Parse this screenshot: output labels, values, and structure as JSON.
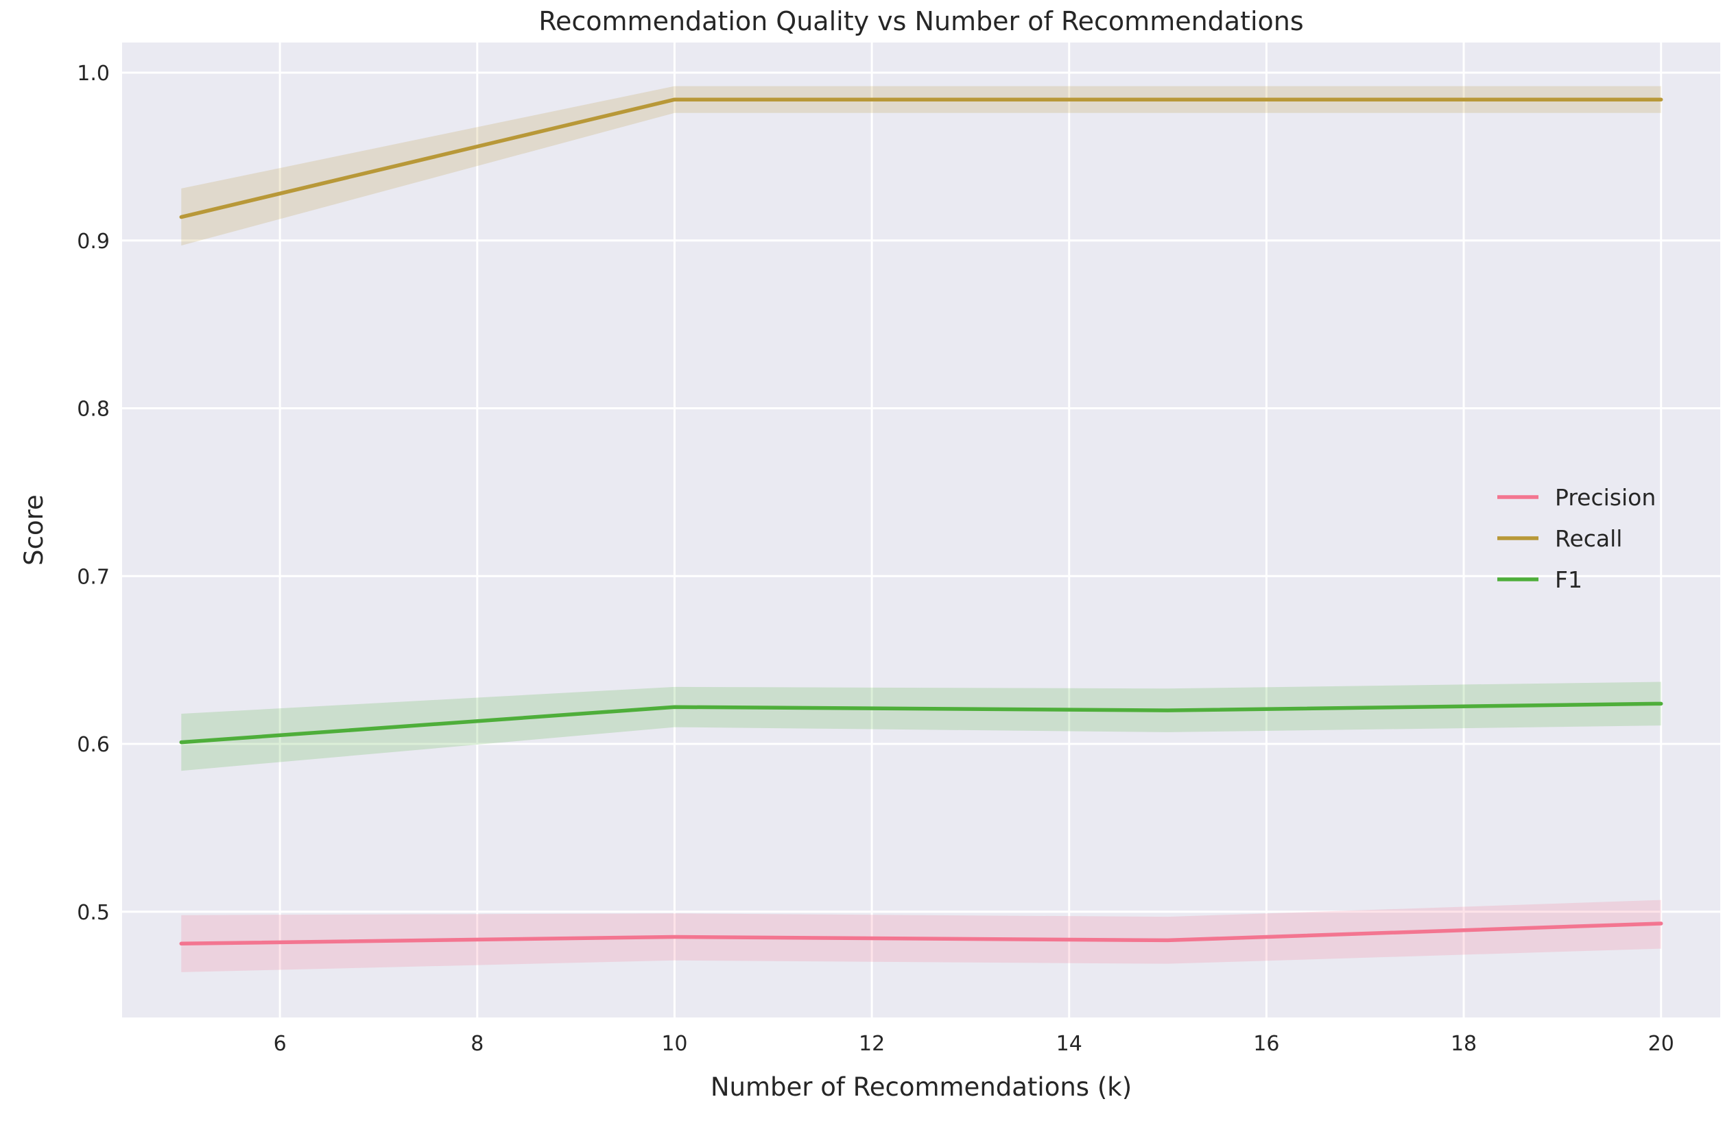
{
  "chart_data": {
    "type": "line",
    "title": "Recommendation Quality vs Number of Recommendations",
    "xlabel": "Number of Recommendations (k)",
    "ylabel": "Score",
    "x": [
      5,
      10,
      15,
      20
    ],
    "xlim": [
      4.4,
      20.6
    ],
    "ylim": [
      0.437,
      1.018
    ],
    "xticks": [
      6,
      8,
      10,
      12,
      14,
      16,
      18,
      20
    ],
    "yticks": [
      0.5,
      0.6,
      0.7,
      0.8,
      0.9,
      1.0
    ],
    "xtick_labels": [
      "6",
      "8",
      "10",
      "12",
      "14",
      "16",
      "18",
      "20"
    ],
    "ytick_labels": [
      "0.5",
      "0.6",
      "0.7",
      "0.8",
      "0.9",
      "1.0"
    ],
    "grid": true,
    "legend_position": "center-right",
    "series": [
      {
        "name": "Precision",
        "color": "#f37590",
        "values": [
          0.481,
          0.485,
          0.483,
          0.493
        ],
        "lower": [
          0.464,
          0.471,
          0.469,
          0.478
        ],
        "upper": [
          0.498,
          0.499,
          0.497,
          0.507
        ]
      },
      {
        "name": "Recall",
        "color": "#b89838",
        "values": [
          0.914,
          0.984,
          0.984,
          0.984
        ],
        "lower": [
          0.897,
          0.976,
          0.976,
          0.976
        ],
        "upper": [
          0.931,
          0.992,
          0.992,
          0.992
        ]
      },
      {
        "name": "F1",
        "color": "#4eae3a",
        "values": [
          0.601,
          0.622,
          0.62,
          0.624
        ],
        "lower": [
          0.584,
          0.61,
          0.607,
          0.611
        ],
        "upper": [
          0.618,
          0.634,
          0.633,
          0.637
        ]
      }
    ]
  }
}
